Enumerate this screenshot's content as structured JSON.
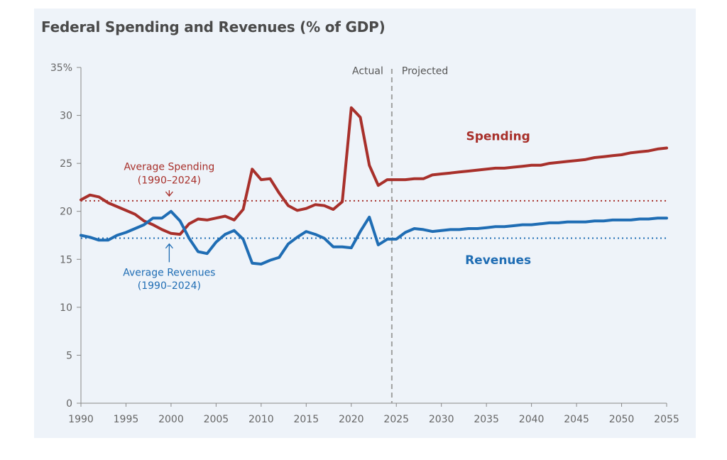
{
  "title": "Federal Spending and Revenues (% of GDP)",
  "colors": {
    "spending": "#a8302b",
    "revenues": "#1f6db4",
    "background": "#eef3f9",
    "axis": "#888888",
    "divider": "#a0a0a0"
  },
  "chart_data": {
    "type": "line",
    "title": "Federal Spending and Revenues (% of GDP)",
    "xlabel": "",
    "ylabel": "",
    "xlim": [
      1990,
      2055
    ],
    "ylim": [
      0,
      35
    ],
    "x_ticks": [
      1990,
      1995,
      2000,
      2005,
      2010,
      2015,
      2020,
      2025,
      2030,
      2035,
      2040,
      2045,
      2050,
      2055
    ],
    "y_ticks": [
      0,
      5,
      10,
      15,
      20,
      25,
      30,
      35
    ],
    "y_tick_labels": [
      "0",
      "5",
      "10",
      "15",
      "20",
      "25",
      "30",
      "35%"
    ],
    "grid": false,
    "legend": "none",
    "divider": {
      "x": 2024.5,
      "left_label": "Actual",
      "right_label": "Projected"
    },
    "series": [
      {
        "name": "Spending",
        "x": [
          1990,
          1991,
          1992,
          1993,
          1994,
          1995,
          1996,
          1997,
          1998,
          1999,
          2000,
          2001,
          2002,
          2003,
          2004,
          2005,
          2006,
          2007,
          2008,
          2009,
          2010,
          2011,
          2012,
          2013,
          2014,
          2015,
          2016,
          2017,
          2018,
          2019,
          2020,
          2021,
          2022,
          2023,
          2024,
          2025,
          2026,
          2027,
          2028,
          2029,
          2030,
          2031,
          2032,
          2033,
          2034,
          2035,
          2036,
          2037,
          2038,
          2039,
          2040,
          2041,
          2042,
          2043,
          2044,
          2045,
          2046,
          2047,
          2048,
          2049,
          2050,
          2051,
          2052,
          2053,
          2054,
          2055
        ],
        "values": [
          21.2,
          21.7,
          21.5,
          20.9,
          20.5,
          20.1,
          19.7,
          19.0,
          18.6,
          18.1,
          17.7,
          17.6,
          18.7,
          19.2,
          19.1,
          19.3,
          19.5,
          19.1,
          20.2,
          24.4,
          23.3,
          23.4,
          21.9,
          20.6,
          20.1,
          20.3,
          20.7,
          20.6,
          20.2,
          21.0,
          30.8,
          29.8,
          24.8,
          22.7,
          23.3,
          23.3,
          23.3,
          23.4,
          23.4,
          23.8,
          23.9,
          24.0,
          24.1,
          24.2,
          24.3,
          24.4,
          24.5,
          24.5,
          24.6,
          24.7,
          24.8,
          24.8,
          25.0,
          25.1,
          25.2,
          25.3,
          25.4,
          25.6,
          25.7,
          25.8,
          25.9,
          26.1,
          26.2,
          26.3,
          26.5,
          26.6
        ]
      },
      {
        "name": "Revenues",
        "x": [
          1990,
          1991,
          1992,
          1993,
          1994,
          1995,
          1996,
          1997,
          1998,
          1999,
          2000,
          2001,
          2002,
          2003,
          2004,
          2005,
          2006,
          2007,
          2008,
          2009,
          2010,
          2011,
          2012,
          2013,
          2014,
          2015,
          2016,
          2017,
          2018,
          2019,
          2020,
          2021,
          2022,
          2023,
          2024,
          2025,
          2026,
          2027,
          2028,
          2029,
          2030,
          2031,
          2032,
          2033,
          2034,
          2035,
          2036,
          2037,
          2038,
          2039,
          2040,
          2041,
          2042,
          2043,
          2044,
          2045,
          2046,
          2047,
          2048,
          2049,
          2050,
          2051,
          2052,
          2053,
          2054,
          2055
        ],
        "values": [
          17.5,
          17.3,
          17.0,
          17.0,
          17.5,
          17.8,
          18.2,
          18.6,
          19.3,
          19.3,
          20.0,
          19.0,
          17.2,
          15.8,
          15.6,
          16.8,
          17.6,
          18.0,
          17.1,
          14.6,
          14.5,
          14.9,
          15.2,
          16.6,
          17.3,
          17.9,
          17.6,
          17.2,
          16.3,
          16.3,
          16.2,
          17.9,
          19.4,
          16.5,
          17.1,
          17.1,
          17.8,
          18.2,
          18.1,
          17.9,
          18.0,
          18.1,
          18.1,
          18.2,
          18.2,
          18.3,
          18.4,
          18.4,
          18.5,
          18.6,
          18.6,
          18.7,
          18.8,
          18.8,
          18.9,
          18.9,
          18.9,
          19.0,
          19.0,
          19.1,
          19.1,
          19.1,
          19.2,
          19.2,
          19.3,
          19.3
        ]
      }
    ],
    "reference_lines": [
      {
        "name": "Average Spending",
        "y": 21.1,
        "label_line1": "Average Spending",
        "label_line2": "(1990–2024)"
      },
      {
        "name": "Average Revenues",
        "y": 17.2,
        "label_line1": "Average Revenues",
        "label_line2": "(1990–2024)"
      }
    ],
    "series_labels": [
      "Spending",
      "Revenues"
    ]
  }
}
